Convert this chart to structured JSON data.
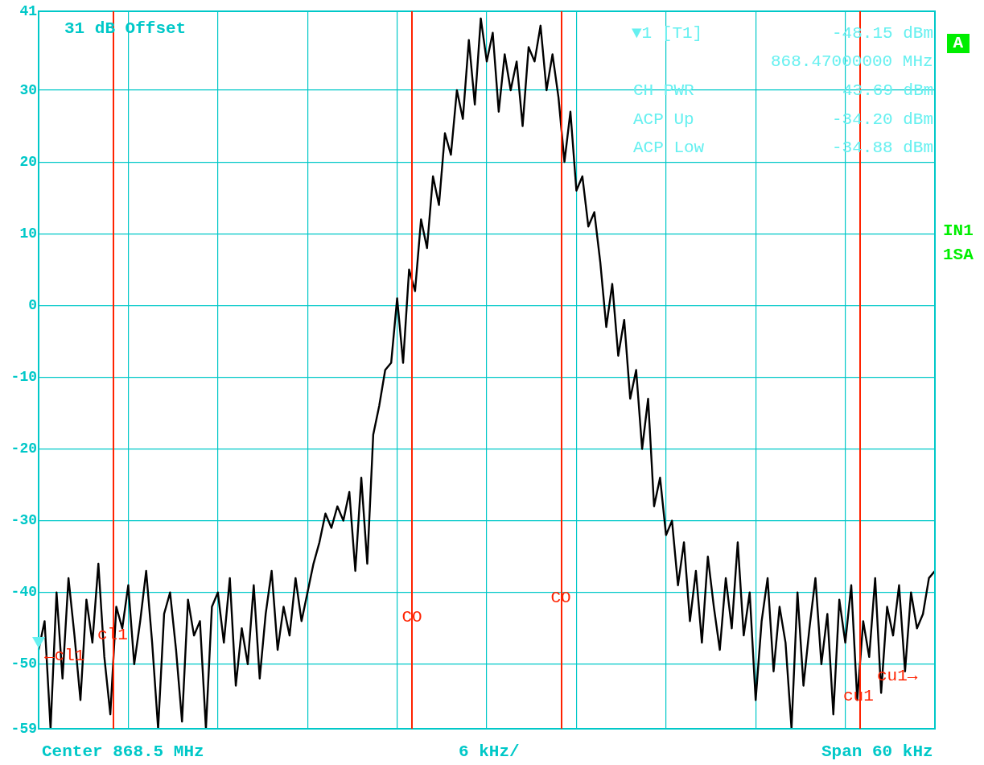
{
  "chart_data": {
    "type": "line",
    "annotations": [
      "31 dB Offset",
      "▼1 [T1]",
      "-48.15 dBm",
      "868.47000000 MHz",
      "CH PWR",
      "43.69 dBm",
      "ACP Up",
      "-34.20 dBm",
      "ACP Low",
      "-34.88 dBm",
      "A",
      "IN1",
      "1SA",
      "Center 868.5 MHz",
      "6 kHz/",
      "Span 60 kHz",
      "←cl1",
      "cu1→",
      "cl1",
      "CO",
      "CO",
      "cu1"
    ],
    "categories": [
      null,
      null,
      null,
      null,
      null,
      null,
      null,
      null,
      null,
      null,
      null,
      null,
      null,
      null,
      null,
      null,
      null,
      null,
      null,
      null,
      null,
      null,
      null,
      null,
      null,
      null,
      null,
      null,
      null,
      null,
      null,
      null,
      null,
      null,
      null,
      null,
      null,
      null,
      null,
      null,
      null,
      null,
      null,
      null,
      null,
      null,
      null,
      null,
      null,
      null,
      null,
      null,
      null,
      null,
      null,
      null,
      null,
      null,
      null,
      null,
      null,
      null,
      null,
      null,
      null,
      null,
      null,
      null,
      null,
      null,
      null,
      null,
      null,
      null,
      null,
      null,
      null,
      null,
      null,
      null,
      null,
      null,
      null,
      null,
      null,
      null,
      null,
      null,
      null,
      null,
      null,
      null,
      null,
      null,
      null,
      null,
      null,
      null,
      null,
      null,
      null,
      null,
      null,
      null,
      null,
      null,
      null,
      null,
      null,
      null,
      null,
      null,
      null,
      null,
      null,
      null,
      null,
      null,
      null,
      null,
      null,
      null,
      null,
      null,
      null,
      null,
      null,
      null,
      null,
      null,
      null,
      null,
      null,
      null,
      null,
      null,
      null,
      null,
      null,
      null,
      null,
      null,
      null,
      null,
      null,
      null,
      null,
      null,
      null,
      null,
      null
    ],
    "series": [
      {
        "color": "#000000",
        "values": [
          -48,
          -44,
          -59,
          -40,
          -52,
          -38,
          -46,
          -55,
          -41,
          -47,
          -36,
          -49,
          -57,
          -42,
          -45,
          -39,
          -50,
          -44,
          -37,
          -47,
          -59,
          -43,
          -40,
          -48,
          -58,
          -41,
          -46,
          -44,
          -59,
          -42,
          -40,
          -47,
          -38,
          -53,
          -45,
          -50,
          -39,
          -52,
          -43,
          -37,
          -48,
          -42,
          -46,
          -38,
          -44,
          -40,
          -36,
          -33,
          -29,
          -31,
          -28,
          -30,
          -26,
          -37,
          -24,
          -36,
          -18,
          -14,
          -9,
          -8,
          1,
          -8,
          5,
          2,
          12,
          8,
          18,
          14,
          24,
          21,
          30,
          26,
          37,
          28,
          40,
          34,
          38,
          27,
          35,
          30,
          34,
          25,
          36,
          34,
          39,
          30,
          35,
          29,
          20,
          27,
          16,
          18,
          11,
          13,
          6,
          -3,
          3,
          -7,
          -2,
          -13,
          -9,
          -20,
          -13,
          -28,
          -24,
          -32,
          -30,
          -39,
          -33,
          -44,
          -37,
          -47,
          -35,
          -42,
          -48,
          -38,
          -45,
          -33,
          -46,
          -40,
          -55,
          -44,
          -38,
          -51,
          -42,
          -47,
          -59,
          -40,
          -53,
          -45,
          -38,
          -50,
          -43,
          -57,
          -41,
          -47,
          -39,
          -55,
          -44,
          -49,
          -38,
          -54,
          -42,
          -46,
          -39,
          -51,
          -40,
          -45,
          -43,
          -38,
          -37
        ]
      }
    ],
    "ylim": [
      -59,
      41
    ],
    "yticks": [
      -59,
      -50,
      -40,
      -30,
      -20,
      -10,
      0,
      10,
      20,
      30,
      41
    ],
    "tick_labels": "y",
    "grid": true,
    "marker": "none",
    "line_style": "solid"
  }
}
